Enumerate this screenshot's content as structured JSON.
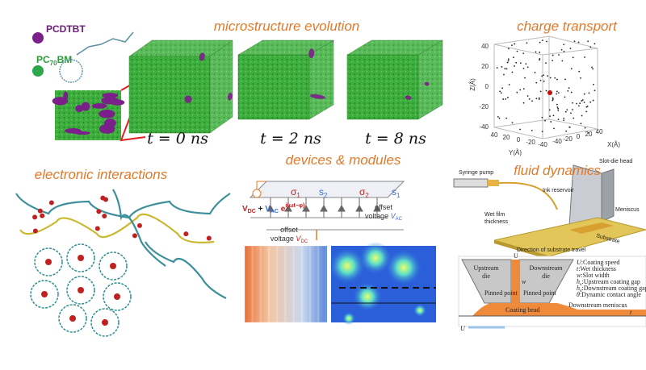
{
  "molecules": {
    "donor": "PCDTBT",
    "acceptor": {
      "base": "PC",
      "sub": "70",
      "suffix": "BM"
    }
  },
  "microstructure": {
    "title": "microstructure evolution",
    "times": [
      "t = 0 ns",
      "t = 2 ns",
      "t = 8 ns"
    ]
  },
  "charge_transport": {
    "title": "charge transport",
    "z_label": "Z(Å)",
    "y_label": "Y(Å)",
    "x_label": "X(Å)",
    "z_ticks": [
      "40",
      "20",
      "0",
      "-20",
      "-40"
    ],
    "y_ticks": [
      "40",
      "20",
      "0",
      "-20",
      "-40"
    ],
    "x_ticks": [
      "-40",
      "-20",
      "0",
      "20",
      "40"
    ]
  },
  "electronic": {
    "title": "electronic interactions"
  },
  "devices": {
    "title": "devices & modules",
    "sigmas": [
      {
        "s": "σ",
        "sub": "1"
      },
      {
        "s": "s",
        "sub": "2"
      },
      {
        "s": "σ",
        "sub": "2"
      },
      {
        "s": "s",
        "sub": "1"
      }
    ],
    "source": {
      "v1": "V",
      "sub1": "DC",
      "plus": " + ",
      "v2": "V",
      "sub2": "AC",
      "e": " e",
      "exp": "i(ωt−φ)"
    },
    "offsets": [
      {
        "line1": "offset",
        "line2": "voltage ",
        "var": "V",
        "sub": "DC"
      },
      {
        "line1": "offset",
        "line2": "voltage ",
        "var": "V",
        "sub": "AC"
      }
    ]
  },
  "fluid": {
    "title": "fluid dynamics",
    "syringe": "Syringe pump",
    "head": "Slot-die head",
    "reservoir": "Ink reservoir",
    "meniscus": "Meniscus",
    "wet_film": [
      "Wet film",
      "thickness"
    ],
    "substrate": "Substrate",
    "direction": "Direction of substrate travel",
    "upstream": [
      "Upstream",
      "die"
    ],
    "downstream": [
      "Downstream",
      "die"
    ],
    "pinned": "Pinned point",
    "bead": "Coating bead",
    "down_meniscus": "Downstream meniscus",
    "speed": "U",
    "w": "w",
    "t": "t",
    "legend": [
      {
        "sym": "U",
        "sub": "",
        "text": ":Coating speed"
      },
      {
        "sym": "t",
        "sub": "",
        "text": ":Wet thickness"
      },
      {
        "sym": "w",
        "sub": "",
        "text": ":Slot width"
      },
      {
        "sym": "h",
        "sub": "u",
        "text": ":Upstream coating gap"
      },
      {
        "sym": "h",
        "sub": "d",
        "text": ":Downstream coating gap"
      },
      {
        "sym": "θ",
        "sub": "",
        "text": ":Dynamic contact angle"
      }
    ]
  }
}
